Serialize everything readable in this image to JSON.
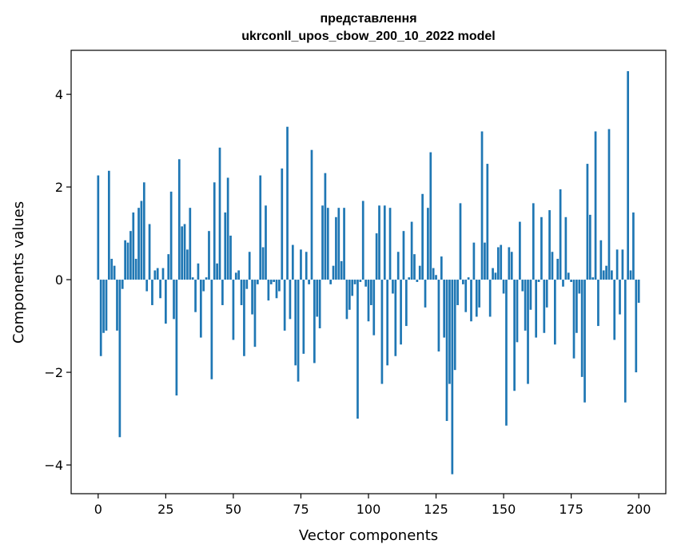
{
  "chart_data": {
    "type": "bar",
    "title_line1": "представлення",
    "title_line2": "ukrconll_upos_cbow_200_10_2022 model",
    "xlabel": "Vector components",
    "ylabel": "Components values",
    "xlim": [
      -10,
      210
    ],
    "ylim": [
      -4.62,
      4.95
    ],
    "xticks": [
      0,
      25,
      50,
      75,
      100,
      125,
      150,
      175,
      200
    ],
    "yticks": [
      -4,
      -2,
      0,
      2,
      4
    ],
    "ytick_labels": [
      "−4",
      "−2",
      "0",
      "2",
      "4"
    ],
    "bar_color": "#1f77b4",
    "values": [
      2.25,
      -1.65,
      -1.15,
      -1.1,
      2.35,
      0.45,
      0.3,
      -1.1,
      -3.4,
      -0.2,
      0.85,
      0.8,
      1.05,
      1.45,
      0.45,
      1.55,
      1.7,
      2.1,
      -0.25,
      1.2,
      -0.55,
      0.2,
      0.25,
      -0.4,
      0.25,
      -0.95,
      0.55,
      1.9,
      -0.85,
      -2.5,
      2.6,
      1.15,
      1.2,
      0.65,
      1.55,
      0.05,
      -0.7,
      0.35,
      -1.25,
      -0.25,
      0.05,
      1.05,
      -2.15,
      2.1,
      0.35,
      2.85,
      -0.55,
      1.45,
      2.2,
      0.95,
      -1.3,
      0.15,
      0.2,
      -0.55,
      -1.65,
      -0.2,
      0.6,
      -0.75,
      -1.45,
      -0.1,
      2.25,
      0.7,
      1.6,
      -0.45,
      -0.1,
      -0.05,
      -0.4,
      -0.25,
      2.4,
      -1.1,
      3.3,
      -0.85,
      0.75,
      -1.85,
      -2.2,
      0.65,
      -1.6,
      0.6,
      -0.1,
      2.8,
      -1.8,
      -0.8,
      -1.05,
      1.6,
      2.3,
      1.55,
      -0.1,
      0.3,
      1.35,
      1.55,
      0.4,
      1.55,
      -0.85,
      -0.65,
      -0.35,
      -0.1,
      -3.0,
      -0.05,
      1.7,
      -0.15,
      -0.9,
      -0.55,
      -1.2,
      1.0,
      1.6,
      -2.25,
      1.6,
      -1.85,
      1.55,
      -0.3,
      -1.65,
      0.6,
      -1.4,
      1.05,
      -1.0,
      0.05,
      1.25,
      0.55,
      -0.05,
      0.3,
      1.85,
      -0.6,
      1.55,
      2.75,
      0.25,
      0.1,
      -1.55,
      0.5,
      -1.25,
      -3.05,
      -2.25,
      -4.2,
      -1.95,
      -0.55,
      1.65,
      -0.1,
      -0.7,
      0.05,
      -0.9,
      0.8,
      -0.8,
      -0.6,
      3.2,
      0.8,
      2.5,
      -0.8,
      0.25,
      0.15,
      0.7,
      0.75,
      -0.3,
      -3.15,
      0.7,
      0.6,
      -2.4,
      -1.35,
      1.25,
      -0.25,
      -1.1,
      -2.25,
      -0.65,
      1.65,
      -1.25,
      -0.05,
      1.35,
      -1.15,
      -0.6,
      1.5,
      0.6,
      -1.4,
      0.45,
      1.95,
      -0.15,
      1.35,
      0.15,
      -0.05,
      -1.7,
      -1.15,
      -0.3,
      -2.1,
      -2.65,
      2.5,
      1.4,
      0.05,
      3.2,
      -1.0,
      0.85,
      0.2,
      0.3,
      3.25,
      0.2,
      -1.3,
      0.65,
      -0.75,
      0.65,
      -2.65,
      4.5,
      0.2,
      1.45,
      -2.0,
      -0.5
    ]
  }
}
